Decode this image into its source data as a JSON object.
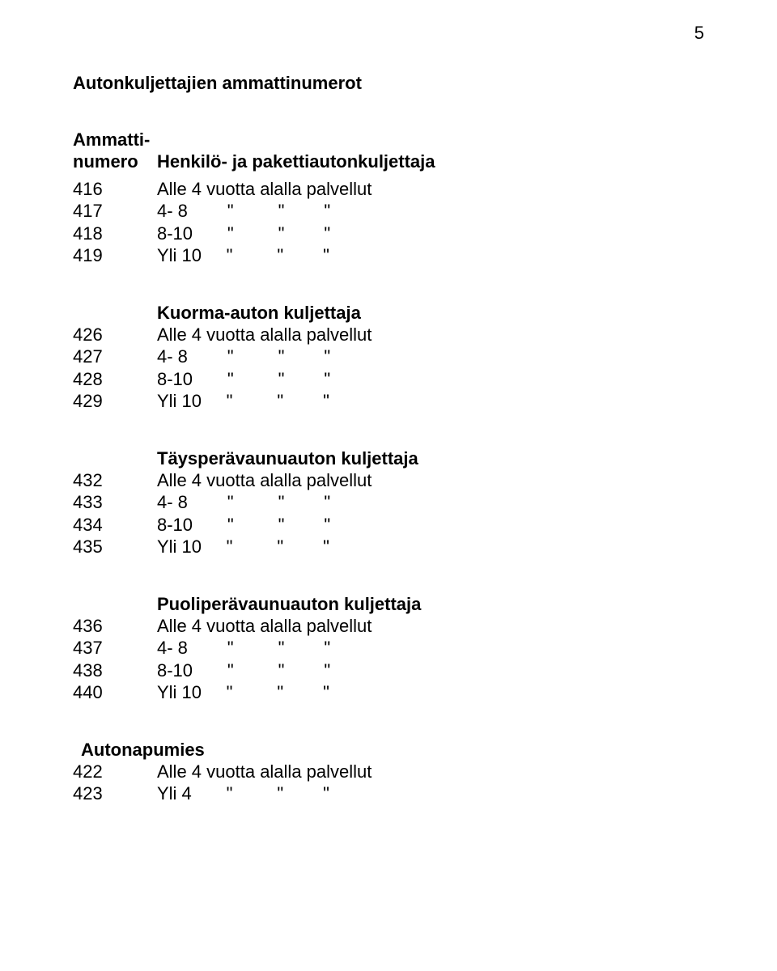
{
  "page_number": "5",
  "title": "Autonkuljettajien ammattinumerot",
  "subhead_line1": "Ammatti-",
  "subhead_line2": "numero",
  "sections": [
    {
      "heading": "Henkilö- ja pakettiautonkuljettaja",
      "rows": [
        {
          "num": "416",
          "text": "Alle 4 vuotta alalla palvellut"
        },
        {
          "num": "417",
          "text": "4- 8        \"         \"        \""
        },
        {
          "num": "418",
          "text": "8-10       \"         \"        \""
        },
        {
          "num": "419",
          "text": "Yli 10     \"         \"        \""
        }
      ]
    },
    {
      "heading": "Kuorma-auton kuljettaja",
      "rows": [
        {
          "num": "426",
          "text": "Alle 4 vuotta alalla palvellut"
        },
        {
          "num": "427",
          "text": "4- 8        \"         \"        \""
        },
        {
          "num": "428",
          "text": "8-10       \"         \"        \""
        },
        {
          "num": "429",
          "text": "Yli 10     \"         \"        \""
        }
      ]
    },
    {
      "heading": "Täysperävaunuauton kuljettaja",
      "rows": [
        {
          "num": "432",
          "text": "Alle 4 vuotta alalla palvellut"
        },
        {
          "num": "433",
          "text": "4- 8        \"         \"        \""
        },
        {
          "num": "434",
          "text": "8-10       \"         \"        \""
        },
        {
          "num": "435",
          "text": "Yli 10     \"         \"        \""
        }
      ]
    },
    {
      "heading": "Puoliperävaunuauton kuljettaja",
      "rows": [
        {
          "num": "436",
          "text": "Alle 4 vuotta alalla palvellut"
        },
        {
          "num": "437",
          "text": "4- 8        \"         \"        \""
        },
        {
          "num": "438",
          "text": "8-10       \"         \"        \""
        },
        {
          "num": "440",
          "text": "Yli 10     \"         \"        \""
        }
      ]
    },
    {
      "heading": "Autonapumies",
      "heading_indent": true,
      "rows": [
        {
          "num": "422",
          "text": "Alle 4 vuotta alalla palvellut"
        },
        {
          "num": "423",
          "text": "Yli 4       \"         \"        \""
        }
      ]
    }
  ]
}
